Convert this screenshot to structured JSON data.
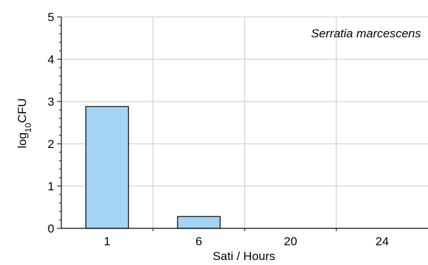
{
  "chart_data": {
    "type": "bar",
    "categories": [
      "1",
      "6",
      "20",
      "24"
    ],
    "values": [
      2.88,
      0.28,
      0,
      0
    ],
    "title": "",
    "xlabel": "Sati / Hours",
    "ylabel_base": "log",
    "ylabel_sub": "10",
    "ylabel_rest": "CFU",
    "annotation": "Serratia marcescens",
    "ylim": [
      0,
      5
    ],
    "yticks": [
      "0",
      "1",
      "2",
      "3",
      "4",
      "5"
    ],
    "grid": true,
    "legend": "none",
    "colors": {
      "bar_fill": "#a3d4f5",
      "bar_stroke": "#000000",
      "grid": "#c8c8c8",
      "axis": "#000000"
    }
  }
}
